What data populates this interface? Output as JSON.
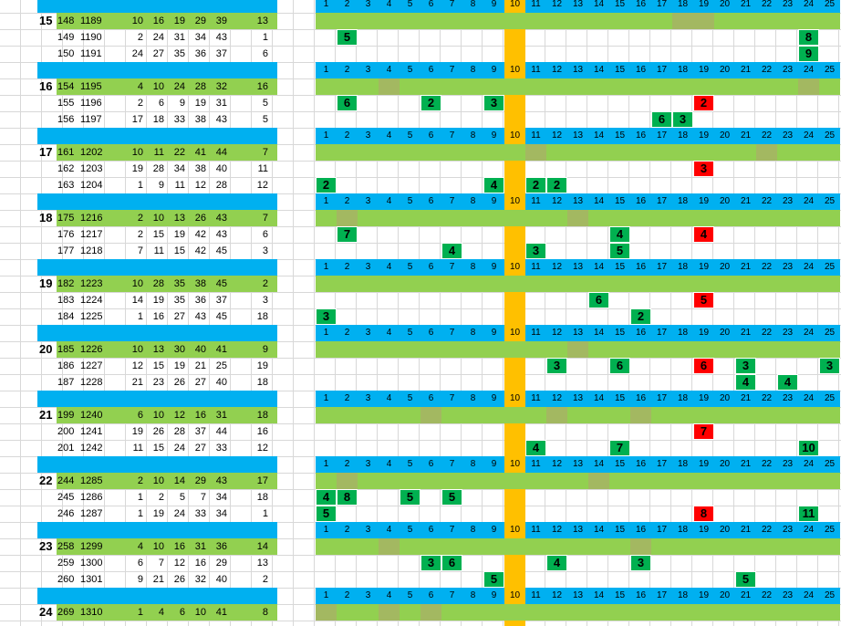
{
  "colors": {
    "header_blue": "#00b0f0",
    "row_green": "#92d050",
    "shade_green": "#a3b861",
    "mark_green": "#00b050",
    "mark_red": "#ff0000",
    "col10_orange": "#ffc000"
  },
  "columns": [
    "1",
    "2",
    "3",
    "4",
    "5",
    "6",
    "7",
    "8",
    "9",
    "10",
    "11",
    "12",
    "13",
    "14",
    "15",
    "16",
    "17",
    "18",
    "19",
    "20",
    "21",
    "22",
    "23",
    "24",
    "25"
  ],
  "groups": [
    {
      "label": "15",
      "rows": [
        {
          "a": "148",
          "b": "1189",
          "n": [
            "10",
            "16",
            "19",
            "29",
            "39"
          ],
          "last": "13",
          "marks": [],
          "shades": [
            18,
            19
          ]
        },
        {
          "a": "149",
          "b": "1190",
          "n": [
            "2",
            "24",
            "31",
            "34",
            "43"
          ],
          "last": "1",
          "marks": [
            {
              "col": 2,
              "v": "5",
              "c": "g"
            },
            {
              "col": 24,
              "v": "8",
              "c": "g"
            }
          ],
          "shades": []
        },
        {
          "a": "150",
          "b": "1191",
          "n": [
            "24",
            "27",
            "35",
            "36",
            "37"
          ],
          "last": "6",
          "marks": [
            {
              "col": 24,
              "v": "9",
              "c": "g"
            }
          ],
          "shades": []
        }
      ]
    },
    {
      "label": "16",
      "rows": [
        {
          "a": "154",
          "b": "1195",
          "n": [
            "4",
            "10",
            "24",
            "28",
            "32"
          ],
          "last": "16",
          "marks": [],
          "shades": [
            4,
            24
          ]
        },
        {
          "a": "155",
          "b": "1196",
          "n": [
            "2",
            "6",
            "9",
            "19",
            "31"
          ],
          "last": "5",
          "marks": [
            {
              "col": 2,
              "v": "6",
              "c": "g"
            },
            {
              "col": 6,
              "v": "2",
              "c": "g"
            },
            {
              "col": 9,
              "v": "3",
              "c": "g"
            },
            {
              "col": 19,
              "v": "2",
              "c": "r"
            }
          ],
          "shades": []
        },
        {
          "a": "156",
          "b": "1197",
          "n": [
            "17",
            "18",
            "33",
            "38",
            "43"
          ],
          "last": "5",
          "marks": [
            {
              "col": 17,
              "v": "6",
              "c": "g"
            },
            {
              "col": 18,
              "v": "3",
              "c": "g"
            }
          ],
          "shades": []
        }
      ]
    },
    {
      "label": "17",
      "rows": [
        {
          "a": "161",
          "b": "1202",
          "n": [
            "10",
            "11",
            "22",
            "41",
            "44"
          ],
          "last": "7",
          "marks": [],
          "shades": [
            11,
            22
          ]
        },
        {
          "a": "162",
          "b": "1203",
          "n": [
            "19",
            "28",
            "34",
            "38",
            "40"
          ],
          "last": "11",
          "marks": [
            {
              "col": 19,
              "v": "3",
              "c": "r"
            }
          ],
          "shades": []
        },
        {
          "a": "163",
          "b": "1204",
          "n": [
            "1",
            "9",
            "11",
            "12",
            "28"
          ],
          "last": "12",
          "marks": [
            {
              "col": 1,
              "v": "2",
              "c": "g"
            },
            {
              "col": 9,
              "v": "4",
              "c": "g"
            },
            {
              "col": 11,
              "v": "2",
              "c": "g"
            },
            {
              "col": 12,
              "v": "2",
              "c": "g"
            }
          ],
          "shades": []
        }
      ]
    },
    {
      "label": "18",
      "rows": [
        {
          "a": "175",
          "b": "1216",
          "n": [
            "2",
            "10",
            "13",
            "26",
            "43"
          ],
          "last": "7",
          "marks": [],
          "shades": [
            2,
            13
          ]
        },
        {
          "a": "176",
          "b": "1217",
          "n": [
            "2",
            "15",
            "19",
            "42",
            "43"
          ],
          "last": "6",
          "marks": [
            {
              "col": 2,
              "v": "7",
              "c": "g"
            },
            {
              "col": 15,
              "v": "4",
              "c": "g"
            },
            {
              "col": 19,
              "v": "4",
              "c": "r"
            }
          ],
          "shades": []
        },
        {
          "a": "177",
          "b": "1218",
          "n": [
            "7",
            "11",
            "15",
            "42",
            "45"
          ],
          "last": "3",
          "marks": [
            {
              "col": 7,
              "v": "4",
              "c": "g"
            },
            {
              "col": 11,
              "v": "3",
              "c": "g"
            },
            {
              "col": 15,
              "v": "5",
              "c": "g"
            }
          ],
          "shades": []
        }
      ]
    },
    {
      "label": "19",
      "rows": [
        {
          "a": "182",
          "b": "1223",
          "n": [
            "10",
            "28",
            "35",
            "38",
            "45"
          ],
          "last": "2",
          "marks": [],
          "shades": []
        },
        {
          "a": "183",
          "b": "1224",
          "n": [
            "14",
            "19",
            "35",
            "36",
            "37"
          ],
          "last": "3",
          "marks": [
            {
              "col": 14,
              "v": "6",
              "c": "g"
            },
            {
              "col": 19,
              "v": "5",
              "c": "r"
            }
          ],
          "shades": []
        },
        {
          "a": "184",
          "b": "1225",
          "n": [
            "1",
            "16",
            "27",
            "43",
            "45"
          ],
          "last": "18",
          "marks": [
            {
              "col": 1,
              "v": "3",
              "c": "g"
            },
            {
              "col": 16,
              "v": "2",
              "c": "g"
            }
          ],
          "shades": []
        }
      ]
    },
    {
      "label": "20",
      "rows": [
        {
          "a": "185",
          "b": "1226",
          "n": [
            "10",
            "13",
            "30",
            "40",
            "41"
          ],
          "last": "9",
          "marks": [],
          "shades": [
            13
          ]
        },
        {
          "a": "186",
          "b": "1227",
          "n": [
            "12",
            "15",
            "19",
            "21",
            "25"
          ],
          "last": "19",
          "marks": [
            {
              "col": 12,
              "v": "3",
              "c": "g"
            },
            {
              "col": 15,
              "v": "6",
              "c": "g"
            },
            {
              "col": 19,
              "v": "6",
              "c": "r"
            },
            {
              "col": 21,
              "v": "3",
              "c": "g"
            },
            {
              "col": 25,
              "v": "3",
              "c": "g"
            }
          ],
          "shades": []
        },
        {
          "a": "187",
          "b": "1228",
          "n": [
            "21",
            "23",
            "26",
            "27",
            "40"
          ],
          "last": "18",
          "marks": [
            {
              "col": 21,
              "v": "4",
              "c": "g"
            },
            {
              "col": 23,
              "v": "4",
              "c": "g"
            }
          ],
          "shades": []
        }
      ]
    },
    {
      "label": "21",
      "rows": [
        {
          "a": "199",
          "b": "1240",
          "n": [
            "6",
            "10",
            "12",
            "16",
            "31"
          ],
          "last": "18",
          "marks": [],
          "shades": [
            6,
            12,
            16
          ]
        },
        {
          "a": "200",
          "b": "1241",
          "n": [
            "19",
            "26",
            "28",
            "37",
            "44"
          ],
          "last": "16",
          "marks": [
            {
              "col": 19,
              "v": "7",
              "c": "r"
            }
          ],
          "shades": []
        },
        {
          "a": "201",
          "b": "1242",
          "n": [
            "11",
            "15",
            "24",
            "27",
            "33"
          ],
          "last": "12",
          "marks": [
            {
              "col": 11,
              "v": "4",
              "c": "g"
            },
            {
              "col": 15,
              "v": "7",
              "c": "g"
            },
            {
              "col": 24,
              "v": "10",
              "c": "g"
            }
          ],
          "shades": []
        }
      ]
    },
    {
      "label": "22",
      "rows": [
        {
          "a": "244",
          "b": "1285",
          "n": [
            "2",
            "10",
            "14",
            "29",
            "43"
          ],
          "last": "17",
          "marks": [],
          "shades": [
            2,
            14
          ]
        },
        {
          "a": "245",
          "b": "1286",
          "n": [
            "1",
            "2",
            "5",
            "7",
            "34"
          ],
          "last": "18",
          "marks": [
            {
              "col": 1,
              "v": "4",
              "c": "g"
            },
            {
              "col": 2,
              "v": "8",
              "c": "g"
            },
            {
              "col": 5,
              "v": "5",
              "c": "g"
            },
            {
              "col": 7,
              "v": "5",
              "c": "g"
            }
          ],
          "shades": []
        },
        {
          "a": "246",
          "b": "1287",
          "n": [
            "1",
            "19",
            "24",
            "33",
            "34"
          ],
          "last": "1",
          "marks": [
            {
              "col": 1,
              "v": "5",
              "c": "g"
            },
            {
              "col": 19,
              "v": "8",
              "c": "r"
            },
            {
              "col": 24,
              "v": "11",
              "c": "g"
            }
          ],
          "shades": []
        }
      ]
    },
    {
      "label": "23",
      "rows": [
        {
          "a": "258",
          "b": "1299",
          "n": [
            "4",
            "10",
            "16",
            "31",
            "36"
          ],
          "last": "14",
          "marks": [],
          "shades": [
            4,
            16
          ]
        },
        {
          "a": "259",
          "b": "1300",
          "n": [
            "6",
            "7",
            "12",
            "16",
            "29"
          ],
          "last": "13",
          "marks": [
            {
              "col": 6,
              "v": "3",
              "c": "g"
            },
            {
              "col": 7,
              "v": "6",
              "c": "g"
            },
            {
              "col": 12,
              "v": "4",
              "c": "g"
            },
            {
              "col": 16,
              "v": "3",
              "c": "g"
            }
          ],
          "shades": []
        },
        {
          "a": "260",
          "b": "1301",
          "n": [
            "9",
            "21",
            "26",
            "32",
            "40"
          ],
          "last": "2",
          "marks": [
            {
              "col": 9,
              "v": "5",
              "c": "g"
            },
            {
              "col": 21,
              "v": "5",
              "c": "g"
            }
          ],
          "shades": []
        }
      ]
    },
    {
      "label": "24",
      "rows": [
        {
          "a": "269",
          "b": "1310",
          "n": [
            "1",
            "4",
            "6",
            "10",
            "41"
          ],
          "last": "8",
          "marks": [],
          "shades": [
            1,
            4,
            6
          ]
        }
      ]
    }
  ]
}
